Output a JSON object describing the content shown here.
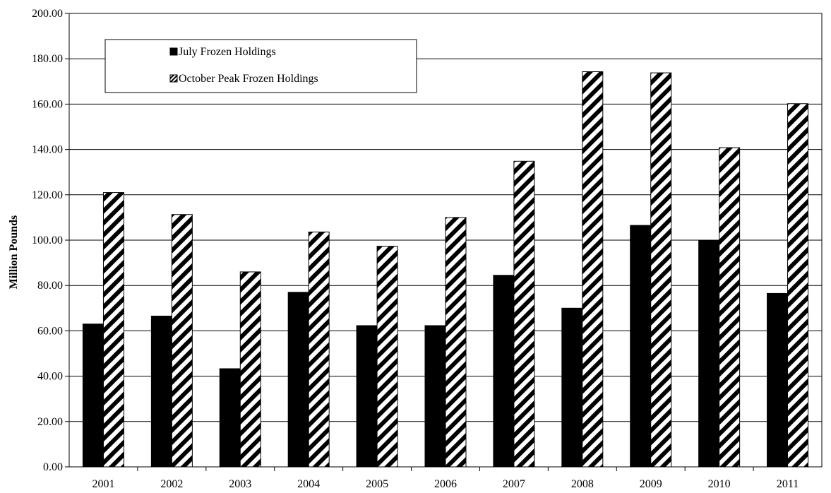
{
  "chart_data": {
    "type": "bar",
    "title": "",
    "xlabel": "",
    "ylabel": "Million Pounds",
    "ylim": [
      0,
      200
    ],
    "ytick_step": 20,
    "ytick_labels": [
      "0.00",
      "20.00",
      "40.00",
      "60.00",
      "80.00",
      "100.00",
      "120.00",
      "140.00",
      "160.00",
      "180.00",
      "200.00"
    ],
    "grid": true,
    "legend_position": "top-left",
    "categories": [
      "2001",
      "2002",
      "2003",
      "2004",
      "2005",
      "2006",
      "2007",
      "2008",
      "2009",
      "2010",
      "2011"
    ],
    "series": [
      {
        "name": "July Frozen Holdings",
        "fill": "solid",
        "color": "#000000",
        "values": [
          63.0,
          66.5,
          43.3,
          77.0,
          62.3,
          62.3,
          84.5,
          70.0,
          106.5,
          100.0,
          76.5
        ]
      },
      {
        "name": "October Peak Frozen Holdings",
        "fill": "diagonal-stripes",
        "color": "#000000",
        "values": [
          121.0,
          111.3,
          86.0,
          103.6,
          97.3,
          110.0,
          134.8,
          174.3,
          173.8,
          140.8,
          160.2
        ]
      }
    ]
  }
}
